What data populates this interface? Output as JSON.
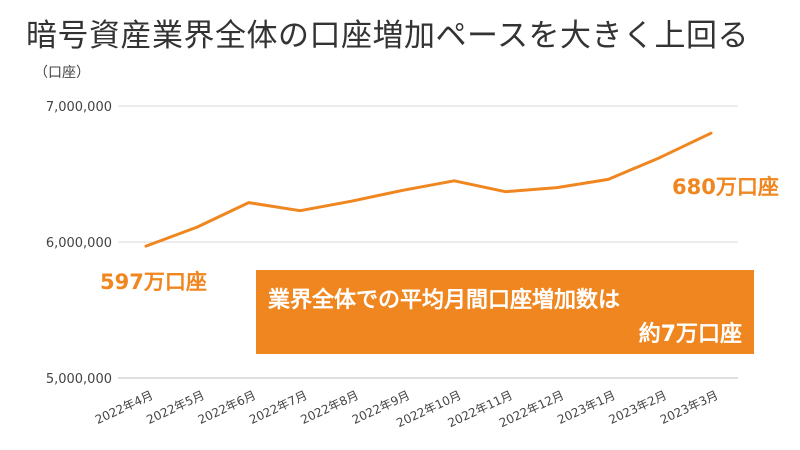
{
  "header": {
    "title": "暗号資産業界全体の口座増加ペースを大きく上回る",
    "unit_label": "（口座）"
  },
  "annotations": {
    "start_value_label": "597万口座",
    "end_value_label": "680万口座",
    "banner_line1": "業界全体での平均月間口座増加数は",
    "banner_line2": "約7万口座"
  },
  "colors": {
    "accent": "#f0861f",
    "grid": "#d9d9d9",
    "text": "#333333"
  },
  "chart_data": {
    "type": "line",
    "title": "暗号資産業界全体の口座増加ペースを大きく上回る",
    "ylabel": "（口座）",
    "xlabel": "",
    "categories": [
      "2022年4月",
      "2022年5月",
      "2022年6月",
      "2022年7月",
      "2022年8月",
      "2022年9月",
      "2022年10月",
      "2022年11月",
      "2022年12月",
      "2023年1月",
      "2023年2月",
      "2023年3月"
    ],
    "series": [
      {
        "values": [
          5970000,
          6110000,
          6290000,
          6230000,
          6300000,
          6380000,
          6450000,
          6370000,
          6400000,
          6460000,
          6620000,
          6800000
        ]
      }
    ],
    "ylim": [
      5000000,
      7000000
    ],
    "yticks": [
      5000000,
      6000000,
      7000000
    ],
    "ytick_labels": [
      "5,000,000",
      "6,000,000",
      "7,000,000"
    ],
    "grid": true,
    "legend": "none"
  }
}
